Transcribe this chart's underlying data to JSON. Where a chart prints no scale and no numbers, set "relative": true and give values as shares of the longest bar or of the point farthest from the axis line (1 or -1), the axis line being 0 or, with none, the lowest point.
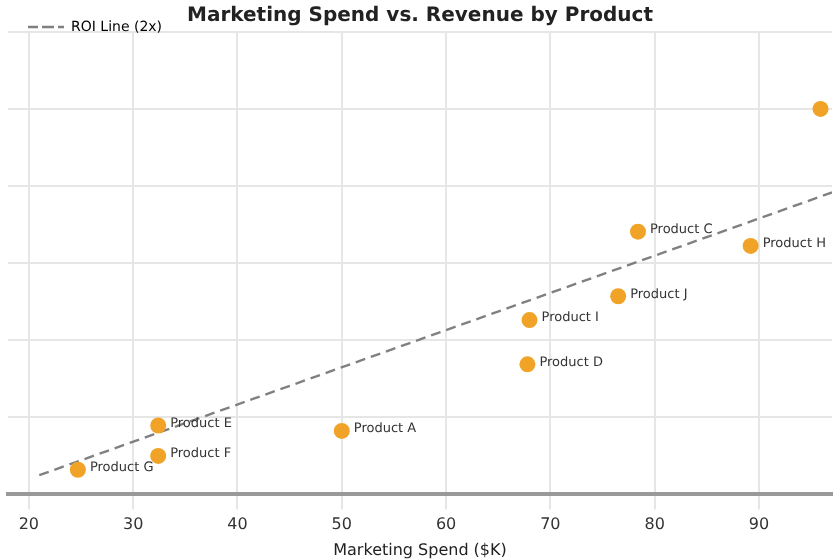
{
  "chart_data": {
    "type": "scatter",
    "title": "Marketing Spend vs. Revenue by Product",
    "xlabel": "Marketing Spend ($K)",
    "relative": true,
    "xlim": [
      18,
      97
    ],
    "xticks": [
      20,
      30,
      40,
      50,
      60,
      70,
      80,
      90
    ],
    "grid": true,
    "legend": "top left",
    "marker": "circle",
    "series": [
      {
        "color": "#f0a326",
        "x": [
          50,
          78.4,
          67.8,
          32.4,
          32.4,
          24.7,
          89.2,
          68,
          76.5,
          95.9
        ],
        "values": [
          0.163,
          0.681,
          0.336,
          0.177,
          0.098,
          0.062,
          0.644,
          0.451,
          0.513,
          1
        ]
      },
      {
        "type": "line",
        "name": "ROI Line (2x)",
        "color": "#808080",
        "line_style": "dashed",
        "marker": "none",
        "x": [
          21,
          97
        ],
        "values": [
          0.048,
          0.783
        ]
      }
    ],
    "annotations": [
      {
        "text": "Product A",
        "x": 50,
        "y": 0.163
      },
      {
        "text": "Product C",
        "x": 78.4,
        "y": 0.681
      },
      {
        "text": "Product D",
        "x": 67.8,
        "y": 0.336
      },
      {
        "text": "Product E",
        "x": 32.4,
        "y": 0.177
      },
      {
        "text": "Product F",
        "x": 32.4,
        "y": 0.098
      },
      {
        "text": "Product G",
        "x": 24.7,
        "y": 0.062
      },
      {
        "text": "Product H",
        "x": 89.2,
        "y": 0.644
      },
      {
        "text": "Product I",
        "x": 68,
        "y": 0.451
      },
      {
        "text": "Product J",
        "x": 76.5,
        "y": 0.513
      }
    ]
  }
}
